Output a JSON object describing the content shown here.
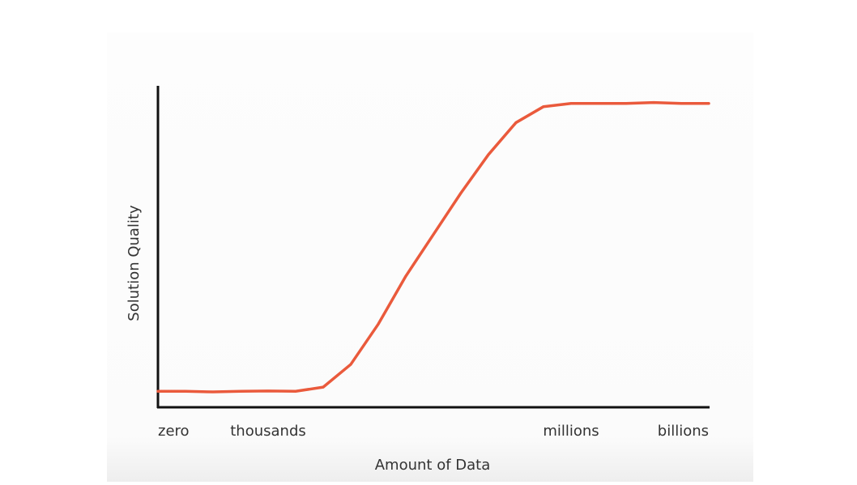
{
  "chart_data": {
    "type": "line",
    "xlabel": "Amount of Data",
    "ylabel": "Solution Quality",
    "categories": [
      "zero",
      null,
      null,
      null,
      "thousands",
      null,
      null,
      null,
      null,
      null,
      null,
      null,
      null,
      null,
      null,
      "millions",
      null,
      null,
      null,
      null,
      "billions"
    ],
    "series": [
      {
        "name": null,
        "color": "#ea5a3c",
        "values": [
          5,
          5,
          4.8,
          5,
          5.1,
          5,
          6.3,
          13.4,
          26,
          41,
          54,
          67,
          79,
          89,
          94,
          95,
          95,
          95,
          95.3,
          95,
          95
        ]
      }
    ],
    "ylim": [
      0,
      100
    ]
  }
}
